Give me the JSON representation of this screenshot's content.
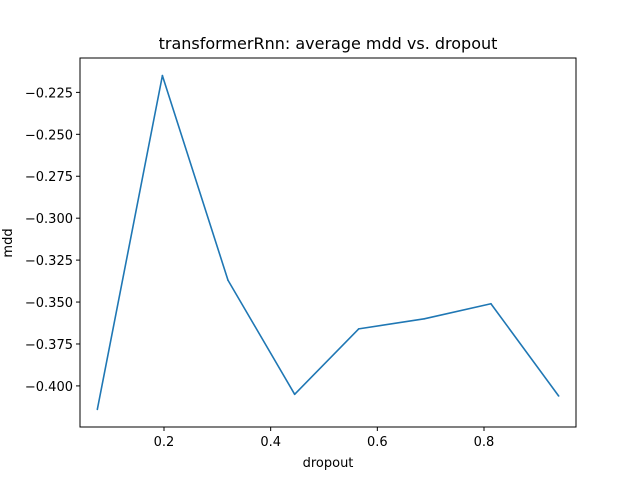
{
  "chart_data": {
    "type": "line",
    "title": "transformerRnn: average mdd vs. dropout",
    "xlabel": "dropout",
    "ylabel": "mdd",
    "xlim": [
      0.0425,
      0.9725
    ],
    "ylim": [
      -0.4245,
      -0.2045
    ],
    "xticks": [
      0.2,
      0.4,
      0.6,
      0.8
    ],
    "xtick_labels": [
      "0.2",
      "0.4",
      "0.6",
      "0.8"
    ],
    "yticks": [
      -0.225,
      -0.25,
      -0.275,
      -0.3,
      -0.325,
      -0.35,
      -0.375,
      -0.4
    ],
    "ytick_labels": [
      "−0.225",
      "−0.250",
      "−0.275",
      "−0.300",
      "−0.325",
      "−0.350",
      "−0.375",
      "−0.400"
    ],
    "grid": false,
    "series": [
      {
        "color": "#1f77b4",
        "x": [
          0.075,
          0.197,
          0.32,
          0.445,
          0.565,
          0.688,
          0.813,
          0.94
        ],
        "y": [
          -0.414,
          -0.215,
          -0.337,
          -0.405,
          -0.366,
          -0.36,
          -0.351,
          -0.406
        ]
      }
    ]
  }
}
